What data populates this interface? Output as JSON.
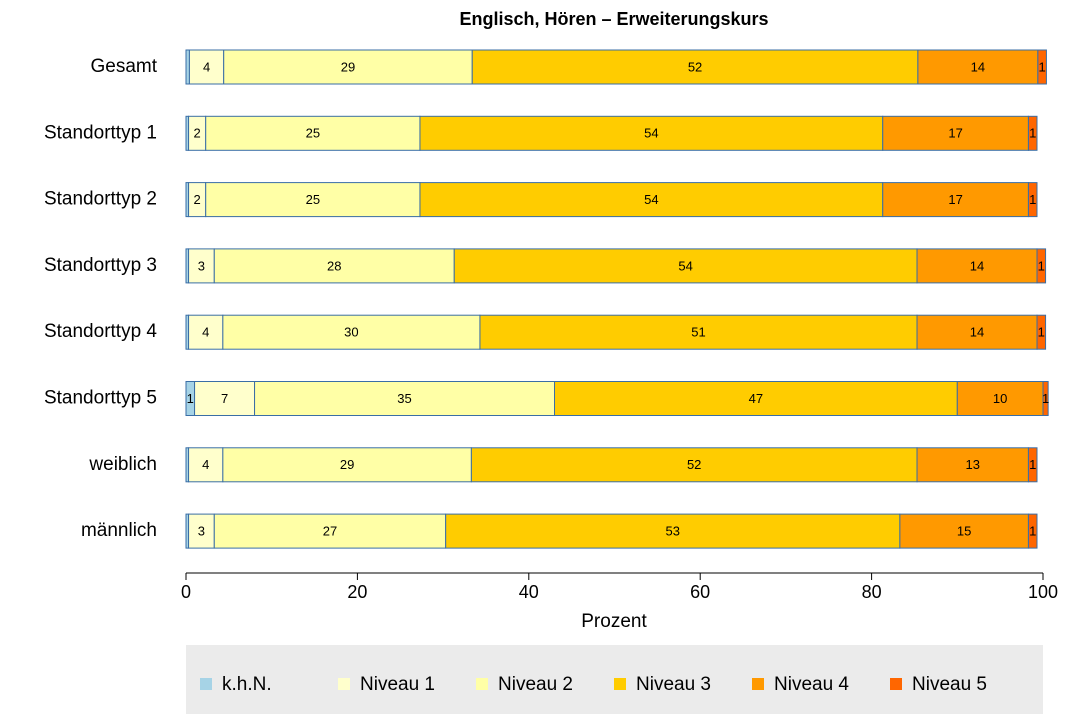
{
  "chart_data": {
    "type": "stacked_bar_horizontal",
    "title": "Englisch, Hören – Erweiterungskurs",
    "categories": [
      "Gesamt",
      "Standorttyp 1",
      "Standorttyp 2",
      "Standorttyp 3",
      "Standorttyp 4",
      "Standorttyp 5",
      "weiblich",
      "männlich"
    ],
    "series": [
      {
        "name": "k.h.N.",
        "color": "#a6d3e6",
        "values": [
          0.4,
          0.3,
          0.3,
          0.3,
          0.3,
          1,
          0.3,
          0.3
        ]
      },
      {
        "name": "Niveau 1",
        "color": "#ffffcc",
        "values": [
          4,
          2,
          2,
          3,
          4,
          7,
          4,
          3
        ]
      },
      {
        "name": "Niveau 2",
        "color": "#ffffa6",
        "values": [
          29,
          25,
          25,
          28,
          30,
          35,
          29,
          27
        ]
      },
      {
        "name": "Niveau 3",
        "color": "#ffcc00",
        "values": [
          52,
          54,
          54,
          54,
          51,
          47,
          52,
          53
        ]
      },
      {
        "name": "Niveau 4",
        "color": "#ff9900",
        "values": [
          14,
          17,
          17,
          14,
          14,
          10,
          13,
          15
        ]
      },
      {
        "name": "Niveau 5",
        "color": "#ff6600",
        "values": [
          1,
          1,
          1,
          1,
          1,
          0.6,
          1,
          1
        ],
        "value_labels": [
          "1",
          "1",
          "1",
          "1",
          "1",
          "1",
          "1",
          "1"
        ]
      }
    ],
    "xlabel": "Prozent",
    "xlim": [
      0,
      100
    ],
    "xticks": [
      0,
      20,
      40,
      60,
      80,
      100
    ],
    "legend": "bottom"
  }
}
